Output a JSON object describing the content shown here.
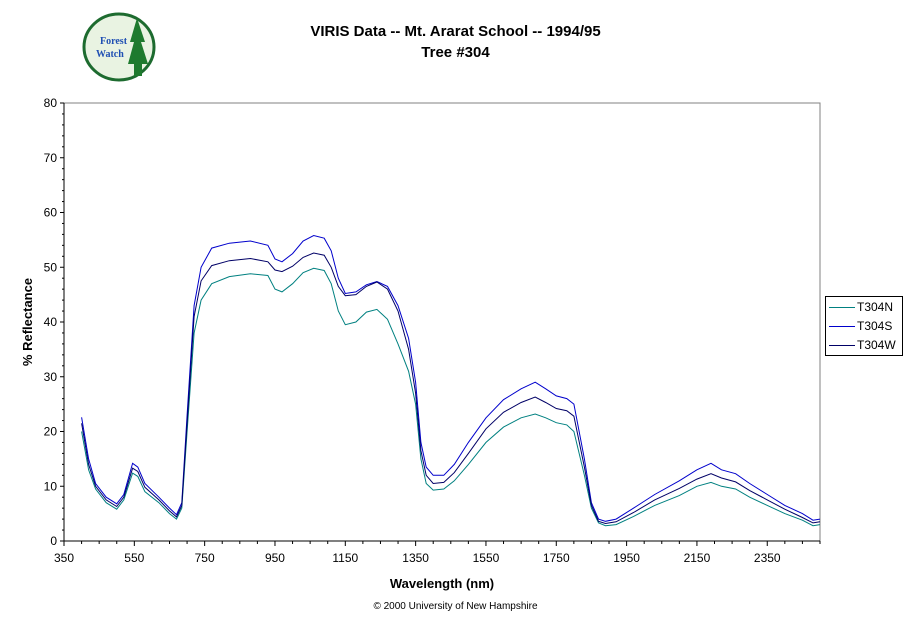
{
  "header": {
    "title_line1": "VIRIS Data -- Mt. Ararat School -- 1994/95",
    "title_line2": "Tree #304"
  },
  "logo": {
    "text_line1": "Forest",
    "text_line2": "Watch",
    "colors": {
      "ring": "#1d6b2f",
      "fill": "#e9f3e2",
      "tree": "#1e7a2e",
      "text": "#1f4fb3"
    }
  },
  "footer": {
    "copyright": "© 2000 University of New Hampshire"
  },
  "chart_data": {
    "type": "line",
    "xlabel": "Wavelength (nm)",
    "ylabel": "% Reflectance",
    "xlim": [
      350,
      2500
    ],
    "ylim": [
      0,
      80
    ],
    "xticks": [
      350,
      550,
      750,
      950,
      1150,
      1350,
      1550,
      1750,
      1950,
      2150,
      2350
    ],
    "yticks": [
      0,
      10,
      20,
      30,
      40,
      50,
      60,
      70,
      80
    ],
    "grid": false,
    "legend_position": "right",
    "series": [
      {
        "name": "T304N",
        "color": "#008080",
        "points": [
          [
            400,
            20
          ],
          [
            420,
            13
          ],
          [
            440,
            9.5
          ],
          [
            470,
            7
          ],
          [
            500,
            5.8
          ],
          [
            520,
            7.5
          ],
          [
            545,
            12.4
          ],
          [
            560,
            11.8
          ],
          [
            580,
            9
          ],
          [
            620,
            7
          ],
          [
            650,
            5
          ],
          [
            670,
            4
          ],
          [
            685,
            6
          ],
          [
            700,
            20
          ],
          [
            720,
            38
          ],
          [
            740,
            44
          ],
          [
            770,
            47
          ],
          [
            820,
            48.3
          ],
          [
            880,
            48.8
          ],
          [
            930,
            48.5
          ],
          [
            950,
            46
          ],
          [
            970,
            45.5
          ],
          [
            1000,
            47
          ],
          [
            1030,
            49
          ],
          [
            1060,
            49.8
          ],
          [
            1090,
            49.4
          ],
          [
            1110,
            47
          ],
          [
            1130,
            42
          ],
          [
            1150,
            39.5
          ],
          [
            1180,
            40
          ],
          [
            1210,
            41.8
          ],
          [
            1240,
            42.3
          ],
          [
            1270,
            40.5
          ],
          [
            1300,
            36
          ],
          [
            1330,
            31
          ],
          [
            1350,
            25
          ],
          [
            1365,
            15
          ],
          [
            1380,
            10.5
          ],
          [
            1400,
            9.3
          ],
          [
            1430,
            9.5
          ],
          [
            1460,
            11
          ],
          [
            1500,
            14
          ],
          [
            1550,
            18
          ],
          [
            1600,
            20.8
          ],
          [
            1650,
            22.5
          ],
          [
            1690,
            23.2
          ],
          [
            1720,
            22.5
          ],
          [
            1750,
            21.6
          ],
          [
            1780,
            21.2
          ],
          [
            1800,
            20
          ],
          [
            1830,
            12
          ],
          [
            1850,
            6
          ],
          [
            1870,
            3.3
          ],
          [
            1890,
            2.8
          ],
          [
            1920,
            3
          ],
          [
            1970,
            4.5
          ],
          [
            2030,
            6.5
          ],
          [
            2100,
            8.3
          ],
          [
            2150,
            10
          ],
          [
            2190,
            10.7
          ],
          [
            2220,
            10
          ],
          [
            2260,
            9.5
          ],
          [
            2300,
            8
          ],
          [
            2350,
            6.5
          ],
          [
            2400,
            5
          ],
          [
            2450,
            3.8
          ],
          [
            2480,
            2.8
          ],
          [
            2500,
            3
          ]
        ]
      },
      {
        "name": "T304S",
        "color": "#0000cc",
        "points": [
          [
            400,
            22.6
          ],
          [
            420,
            15
          ],
          [
            440,
            10.5
          ],
          [
            470,
            8
          ],
          [
            500,
            6.8
          ],
          [
            520,
            8.5
          ],
          [
            545,
            14.2
          ],
          [
            560,
            13.5
          ],
          [
            580,
            10.5
          ],
          [
            620,
            8
          ],
          [
            650,
            6
          ],
          [
            670,
            4.8
          ],
          [
            685,
            7
          ],
          [
            700,
            23
          ],
          [
            720,
            43
          ],
          [
            740,
            50
          ],
          [
            770,
            53.5
          ],
          [
            820,
            54.4
          ],
          [
            880,
            54.8
          ],
          [
            930,
            54
          ],
          [
            950,
            51.5
          ],
          [
            970,
            51
          ],
          [
            1000,
            52.5
          ],
          [
            1030,
            54.8
          ],
          [
            1060,
            55.8
          ],
          [
            1090,
            55.3
          ],
          [
            1110,
            53
          ],
          [
            1130,
            48
          ],
          [
            1150,
            45.2
          ],
          [
            1180,
            45.5
          ],
          [
            1210,
            46.8
          ],
          [
            1240,
            47.4
          ],
          [
            1270,
            46.5
          ],
          [
            1300,
            43
          ],
          [
            1330,
            37
          ],
          [
            1350,
            29
          ],
          [
            1365,
            18
          ],
          [
            1380,
            13.5
          ],
          [
            1400,
            12
          ],
          [
            1430,
            12
          ],
          [
            1460,
            14
          ],
          [
            1500,
            18
          ],
          [
            1550,
            22.5
          ],
          [
            1600,
            25.8
          ],
          [
            1650,
            27.8
          ],
          [
            1690,
            29
          ],
          [
            1720,
            27.8
          ],
          [
            1750,
            26.5
          ],
          [
            1780,
            26
          ],
          [
            1800,
            25
          ],
          [
            1830,
            15
          ],
          [
            1850,
            7
          ],
          [
            1870,
            4
          ],
          [
            1890,
            3.6
          ],
          [
            1920,
            4
          ],
          [
            1970,
            6
          ],
          [
            2030,
            8.5
          ],
          [
            2100,
            11
          ],
          [
            2150,
            13
          ],
          [
            2190,
            14.2
          ],
          [
            2220,
            13
          ],
          [
            2260,
            12.3
          ],
          [
            2300,
            10.5
          ],
          [
            2350,
            8.5
          ],
          [
            2400,
            6.5
          ],
          [
            2450,
            5
          ],
          [
            2480,
            3.8
          ],
          [
            2500,
            4
          ]
        ]
      },
      {
        "name": "T304W",
        "color": "#000066",
        "points": [
          [
            400,
            21.5
          ],
          [
            420,
            14
          ],
          [
            440,
            10
          ],
          [
            470,
            7.5
          ],
          [
            500,
            6.3
          ],
          [
            520,
            8
          ],
          [
            545,
            13.3
          ],
          [
            560,
            12.7
          ],
          [
            580,
            9.8
          ],
          [
            620,
            7.5
          ],
          [
            650,
            5.5
          ],
          [
            670,
            4.4
          ],
          [
            685,
            6.5
          ],
          [
            700,
            21.5
          ],
          [
            720,
            41
          ],
          [
            740,
            47.5
          ],
          [
            770,
            50.3
          ],
          [
            820,
            51.2
          ],
          [
            880,
            51.6
          ],
          [
            930,
            51
          ],
          [
            950,
            49.5
          ],
          [
            970,
            49.2
          ],
          [
            1000,
            50.2
          ],
          [
            1030,
            51.8
          ],
          [
            1060,
            52.6
          ],
          [
            1090,
            52.2
          ],
          [
            1110,
            50
          ],
          [
            1130,
            46.5
          ],
          [
            1150,
            44.8
          ],
          [
            1180,
            45
          ],
          [
            1210,
            46.5
          ],
          [
            1240,
            47.3
          ],
          [
            1270,
            46
          ],
          [
            1300,
            42
          ],
          [
            1330,
            35
          ],
          [
            1350,
            27
          ],
          [
            1365,
            16.5
          ],
          [
            1380,
            12
          ],
          [
            1400,
            10.5
          ],
          [
            1430,
            10.7
          ],
          [
            1460,
            12.5
          ],
          [
            1500,
            16
          ],
          [
            1550,
            20.5
          ],
          [
            1600,
            23.5
          ],
          [
            1650,
            25.3
          ],
          [
            1690,
            26.3
          ],
          [
            1720,
            25.3
          ],
          [
            1750,
            24.2
          ],
          [
            1780,
            23.8
          ],
          [
            1800,
            22.8
          ],
          [
            1830,
            13.5
          ],
          [
            1850,
            6.5
          ],
          [
            1870,
            3.6
          ],
          [
            1890,
            3.2
          ],
          [
            1920,
            3.5
          ],
          [
            1970,
            5.2
          ],
          [
            2030,
            7.5
          ],
          [
            2100,
            9.6
          ],
          [
            2150,
            11.3
          ],
          [
            2190,
            12.3
          ],
          [
            2220,
            11.5
          ],
          [
            2260,
            10.8
          ],
          [
            2300,
            9.2
          ],
          [
            2350,
            7.5
          ],
          [
            2400,
            5.8
          ],
          [
            2450,
            4.3
          ],
          [
            2480,
            3.3
          ],
          [
            2500,
            3.5
          ]
        ]
      }
    ]
  }
}
